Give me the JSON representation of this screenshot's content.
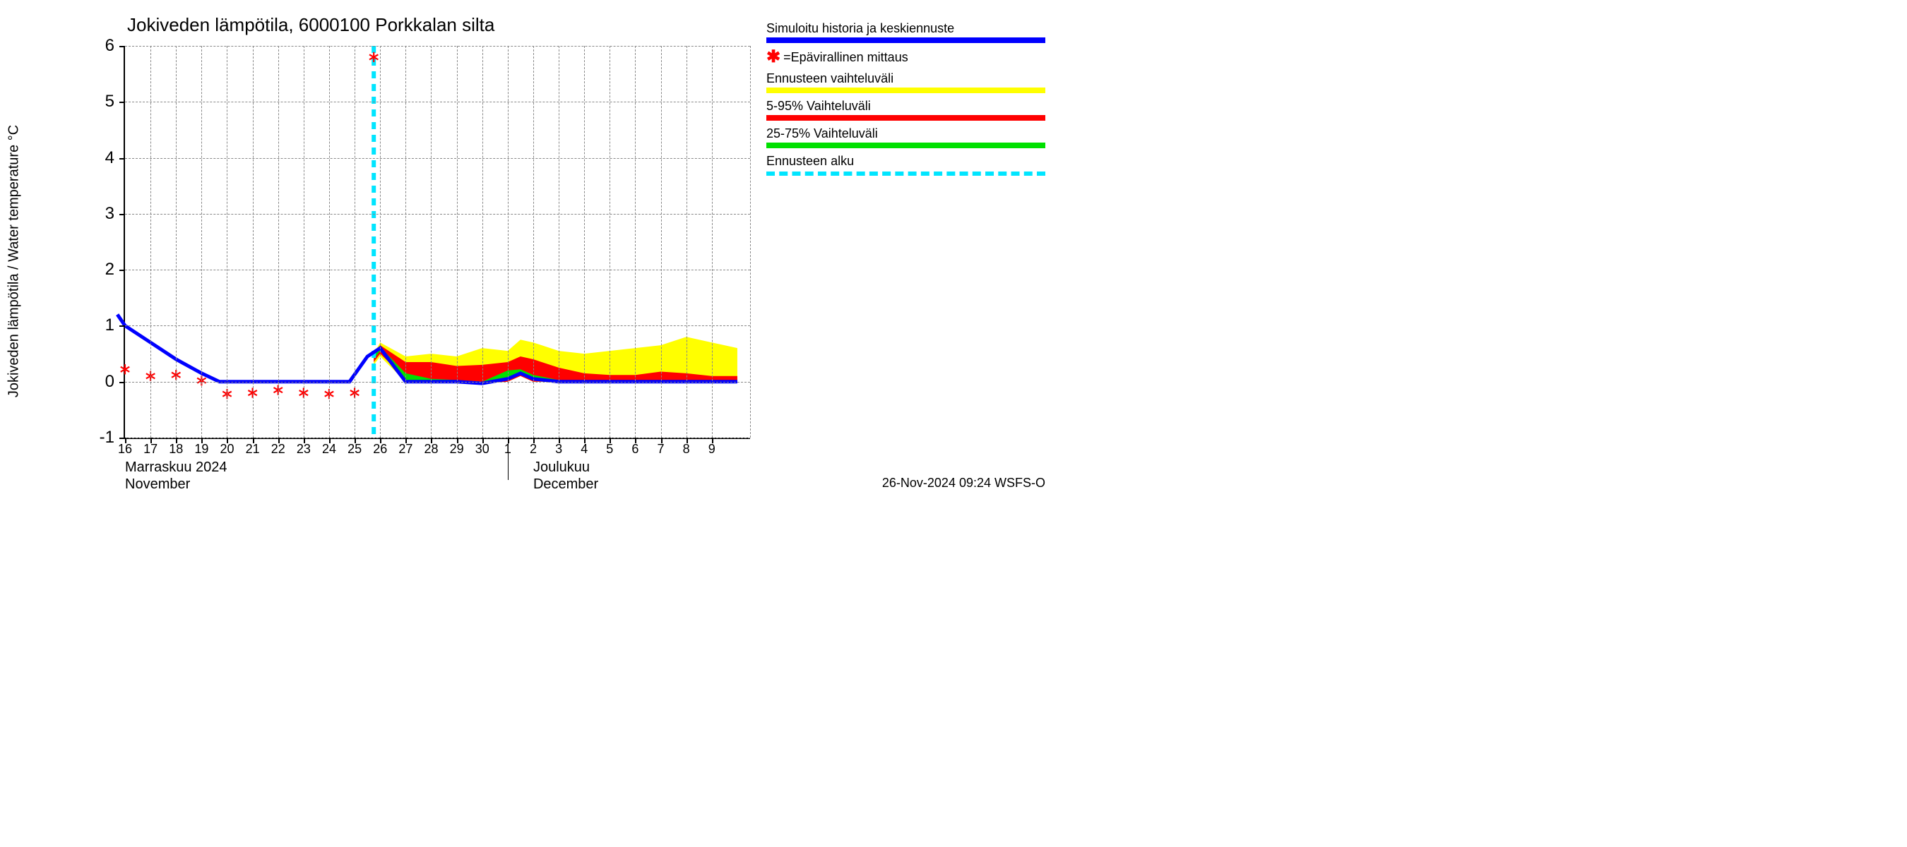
{
  "chart": {
    "type": "line-area-forecast",
    "title": "Jokiveden lämpötila, 6000100 Porkkalan silta",
    "y_axis_label": "Jokiveden lämpötila / Water temperature    °C",
    "title_fontsize": 26,
    "label_fontsize": 20,
    "tick_fontsize": 20,
    "background_color": "#ffffff",
    "grid_color": "#888888",
    "axis_color": "#000000",
    "ylim": [
      -1,
      6
    ],
    "yticks": [
      -1,
      0,
      1,
      2,
      3,
      4,
      5,
      6
    ],
    "x_days": [
      "16",
      "17",
      "18",
      "19",
      "20",
      "21",
      "22",
      "23",
      "24",
      "25",
      "26",
      "27",
      "28",
      "29",
      "30",
      "1",
      "2",
      "3",
      "4",
      "5",
      "6",
      "7",
      "8",
      "9"
    ],
    "x_count_total": 24.5,
    "month_labels": [
      {
        "pos_day_index": 0,
        "line1": "Marraskuu 2024",
        "line2": "November"
      },
      {
        "pos_day_index": 16,
        "line1": "Joulukuu",
        "line2": "December"
      }
    ],
    "month_divider_index": 15,
    "forecast_start_index": 9.75,
    "colors": {
      "sim_line": "#0000ff",
      "marker": "#ff0000",
      "range_full": "#ffff00",
      "range_5_95": "#ff0000",
      "range_25_75": "#00e000",
      "forecast_line": "#00e5ff"
    },
    "line_width_main": 5,
    "marker_size": 10,
    "sim_line": [
      {
        "x": -0.3,
        "y": 1.2
      },
      {
        "x": 0,
        "y": 1.0
      },
      {
        "x": 1,
        "y": 0.7
      },
      {
        "x": 2,
        "y": 0.4
      },
      {
        "x": 3,
        "y": 0.15
      },
      {
        "x": 3.7,
        "y": 0.0
      },
      {
        "x": 4,
        "y": 0.0
      },
      {
        "x": 5,
        "y": 0.0
      },
      {
        "x": 6,
        "y": 0.0
      },
      {
        "x": 7,
        "y": 0.0
      },
      {
        "x": 8,
        "y": 0.0
      },
      {
        "x": 8.8,
        "y": 0.0
      },
      {
        "x": 9.5,
        "y": 0.45
      },
      {
        "x": 10,
        "y": 0.6
      },
      {
        "x": 10.5,
        "y": 0.3
      },
      {
        "x": 11,
        "y": 0.0
      },
      {
        "x": 12,
        "y": 0.0
      },
      {
        "x": 13,
        "y": 0.0
      },
      {
        "x": 14,
        "y": -0.03
      },
      {
        "x": 15,
        "y": 0.05
      },
      {
        "x": 15.5,
        "y": 0.15
      },
      {
        "x": 16,
        "y": 0.05
      },
      {
        "x": 17,
        "y": 0.0
      },
      {
        "x": 18,
        "y": 0.0
      },
      {
        "x": 19,
        "y": 0.0
      },
      {
        "x": 20,
        "y": 0.0
      },
      {
        "x": 21,
        "y": 0.0
      },
      {
        "x": 22,
        "y": 0.0
      },
      {
        "x": 23,
        "y": 0.0
      },
      {
        "x": 24,
        "y": 0.0
      }
    ],
    "band_full": [
      {
        "x": 9.75,
        "lo": 0.3,
        "hi": 0.5
      },
      {
        "x": 10,
        "lo": 0.45,
        "hi": 0.7
      },
      {
        "x": 11,
        "lo": 0.0,
        "hi": 0.45
      },
      {
        "x": 12,
        "lo": 0.0,
        "hi": 0.5
      },
      {
        "x": 13,
        "lo": 0.0,
        "hi": 0.45
      },
      {
        "x": 14,
        "lo": -0.03,
        "hi": 0.6
      },
      {
        "x": 15,
        "lo": 0.0,
        "hi": 0.55
      },
      {
        "x": 15.5,
        "lo": 0.1,
        "hi": 0.75
      },
      {
        "x": 16,
        "lo": 0.0,
        "hi": 0.7
      },
      {
        "x": 17,
        "lo": 0.0,
        "hi": 0.55
      },
      {
        "x": 18,
        "lo": 0.0,
        "hi": 0.5
      },
      {
        "x": 19,
        "lo": 0.0,
        "hi": 0.55
      },
      {
        "x": 20,
        "lo": 0.0,
        "hi": 0.6
      },
      {
        "x": 21,
        "lo": 0.0,
        "hi": 0.65
      },
      {
        "x": 22,
        "lo": 0.0,
        "hi": 0.8
      },
      {
        "x": 23,
        "lo": 0.0,
        "hi": 0.7
      },
      {
        "x": 24,
        "lo": 0.0,
        "hi": 0.6
      }
    ],
    "band_5_95": [
      {
        "x": 9.75,
        "lo": 0.35,
        "hi": 0.5
      },
      {
        "x": 10,
        "lo": 0.5,
        "hi": 0.65
      },
      {
        "x": 11,
        "lo": 0.05,
        "hi": 0.35
      },
      {
        "x": 12,
        "lo": 0.0,
        "hi": 0.35
      },
      {
        "x": 13,
        "lo": 0.0,
        "hi": 0.28
      },
      {
        "x": 14,
        "lo": -0.03,
        "hi": 0.3
      },
      {
        "x": 15,
        "lo": 0.0,
        "hi": 0.35
      },
      {
        "x": 15.5,
        "lo": 0.1,
        "hi": 0.45
      },
      {
        "x": 16,
        "lo": 0.0,
        "hi": 0.4
      },
      {
        "x": 17,
        "lo": 0.0,
        "hi": 0.25
      },
      {
        "x": 18,
        "lo": 0.0,
        "hi": 0.15
      },
      {
        "x": 19,
        "lo": 0.0,
        "hi": 0.12
      },
      {
        "x": 20,
        "lo": 0.0,
        "hi": 0.12
      },
      {
        "x": 21,
        "lo": 0.0,
        "hi": 0.18
      },
      {
        "x": 22,
        "lo": 0.0,
        "hi": 0.15
      },
      {
        "x": 23,
        "lo": 0.0,
        "hi": 0.1
      },
      {
        "x": 24,
        "lo": 0.0,
        "hi": 0.1
      }
    ],
    "band_25_75": [
      {
        "x": 9.75,
        "lo": 0.4,
        "hi": 0.48
      },
      {
        "x": 10,
        "lo": 0.55,
        "hi": 0.62
      },
      {
        "x": 11,
        "lo": 0.0,
        "hi": 0.15
      },
      {
        "x": 12,
        "lo": 0.0,
        "hi": 0.05
      },
      {
        "x": 13,
        "lo": 0.0,
        "hi": 0.03
      },
      {
        "x": 14,
        "lo": -0.03,
        "hi": 0.0
      },
      {
        "x": 15,
        "lo": 0.02,
        "hi": 0.2
      },
      {
        "x": 15.5,
        "lo": 0.12,
        "hi": 0.22
      },
      {
        "x": 16,
        "lo": 0.02,
        "hi": 0.12
      },
      {
        "x": 17,
        "lo": 0.0,
        "hi": 0.03
      },
      {
        "x": 18,
        "lo": 0.0,
        "hi": 0.02
      },
      {
        "x": 19,
        "lo": 0.0,
        "hi": 0.02
      },
      {
        "x": 20,
        "lo": 0.0,
        "hi": 0.02
      },
      {
        "x": 21,
        "lo": 0.0,
        "hi": 0.02
      },
      {
        "x": 22,
        "lo": 0.0,
        "hi": 0.02
      },
      {
        "x": 23,
        "lo": 0.0,
        "hi": 0.02
      },
      {
        "x": 24,
        "lo": 0.0,
        "hi": 0.02
      }
    ],
    "observations": [
      {
        "x": 0,
        "y": 0.22
      },
      {
        "x": 1,
        "y": 0.1
      },
      {
        "x": 2,
        "y": 0.12
      },
      {
        "x": 3,
        "y": 0.02
      },
      {
        "x": 4,
        "y": -0.22
      },
      {
        "x": 5,
        "y": -0.2
      },
      {
        "x": 6,
        "y": -0.15
      },
      {
        "x": 7,
        "y": -0.2
      },
      {
        "x": 8,
        "y": -0.22
      },
      {
        "x": 9,
        "y": -0.2
      },
      {
        "x": 9.75,
        "y": 5.8
      }
    ]
  },
  "legend": {
    "items": [
      {
        "kind": "line",
        "label": "Simuloitu historia ja keskiennuste",
        "color": "#0000ff"
      },
      {
        "kind": "marker",
        "label": "=Epävirallinen mittaus",
        "color": "#ff0000",
        "symbol": "✱"
      },
      {
        "kind": "swatch",
        "label": "Ennusteen vaihteluväli",
        "color": "#ffff00"
      },
      {
        "kind": "swatch",
        "label": "5-95% Vaihteluväli",
        "color": "#ff0000"
      },
      {
        "kind": "swatch",
        "label": "25-75% Vaihteluväli",
        "color": "#00e000"
      },
      {
        "kind": "dashed",
        "label": "Ennusteen alku",
        "color": "#00e5ff"
      }
    ]
  },
  "timestamp": "26-Nov-2024 09:24 WSFS-O"
}
